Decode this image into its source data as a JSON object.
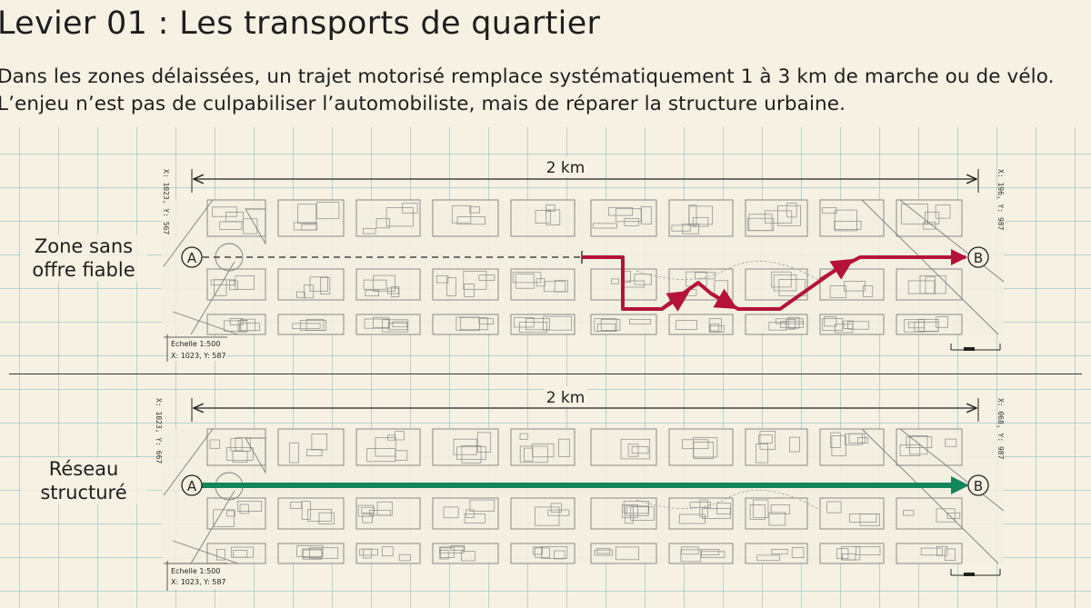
{
  "header": {
    "title": "Levier 01 : Les transports de quartier",
    "intro": "Dans les zones délaissées, un trajet motorisé remplace systématiquement 1 à 3 km de marche ou de vélo. L’enjeu n’est pas de culpabiliser l’automobiliste, mais de réparer la structure urbaine."
  },
  "panels": [
    {
      "label": "Zone sans offre fiable",
      "distance": "2 km",
      "start": "A",
      "end": "B",
      "coord_left": "X: 1023, Y: 567",
      "coord_right": "X: 196, Y: 987",
      "scale": "Echelle 1:500",
      "scale_coords": "X: 1023, Y: 587",
      "route_color": "#b5123a"
    },
    {
      "label": "Réseau structuré",
      "distance": "2 km",
      "start": "A",
      "end": "B",
      "coord_left": "X: 1023, Y: 667",
      "coord_right": "X: 068, Y: 987",
      "scale": "Echelle 1:500",
      "scale_coords": "X: 1023, Y: 587",
      "route_color": "#12855b"
    }
  ]
}
